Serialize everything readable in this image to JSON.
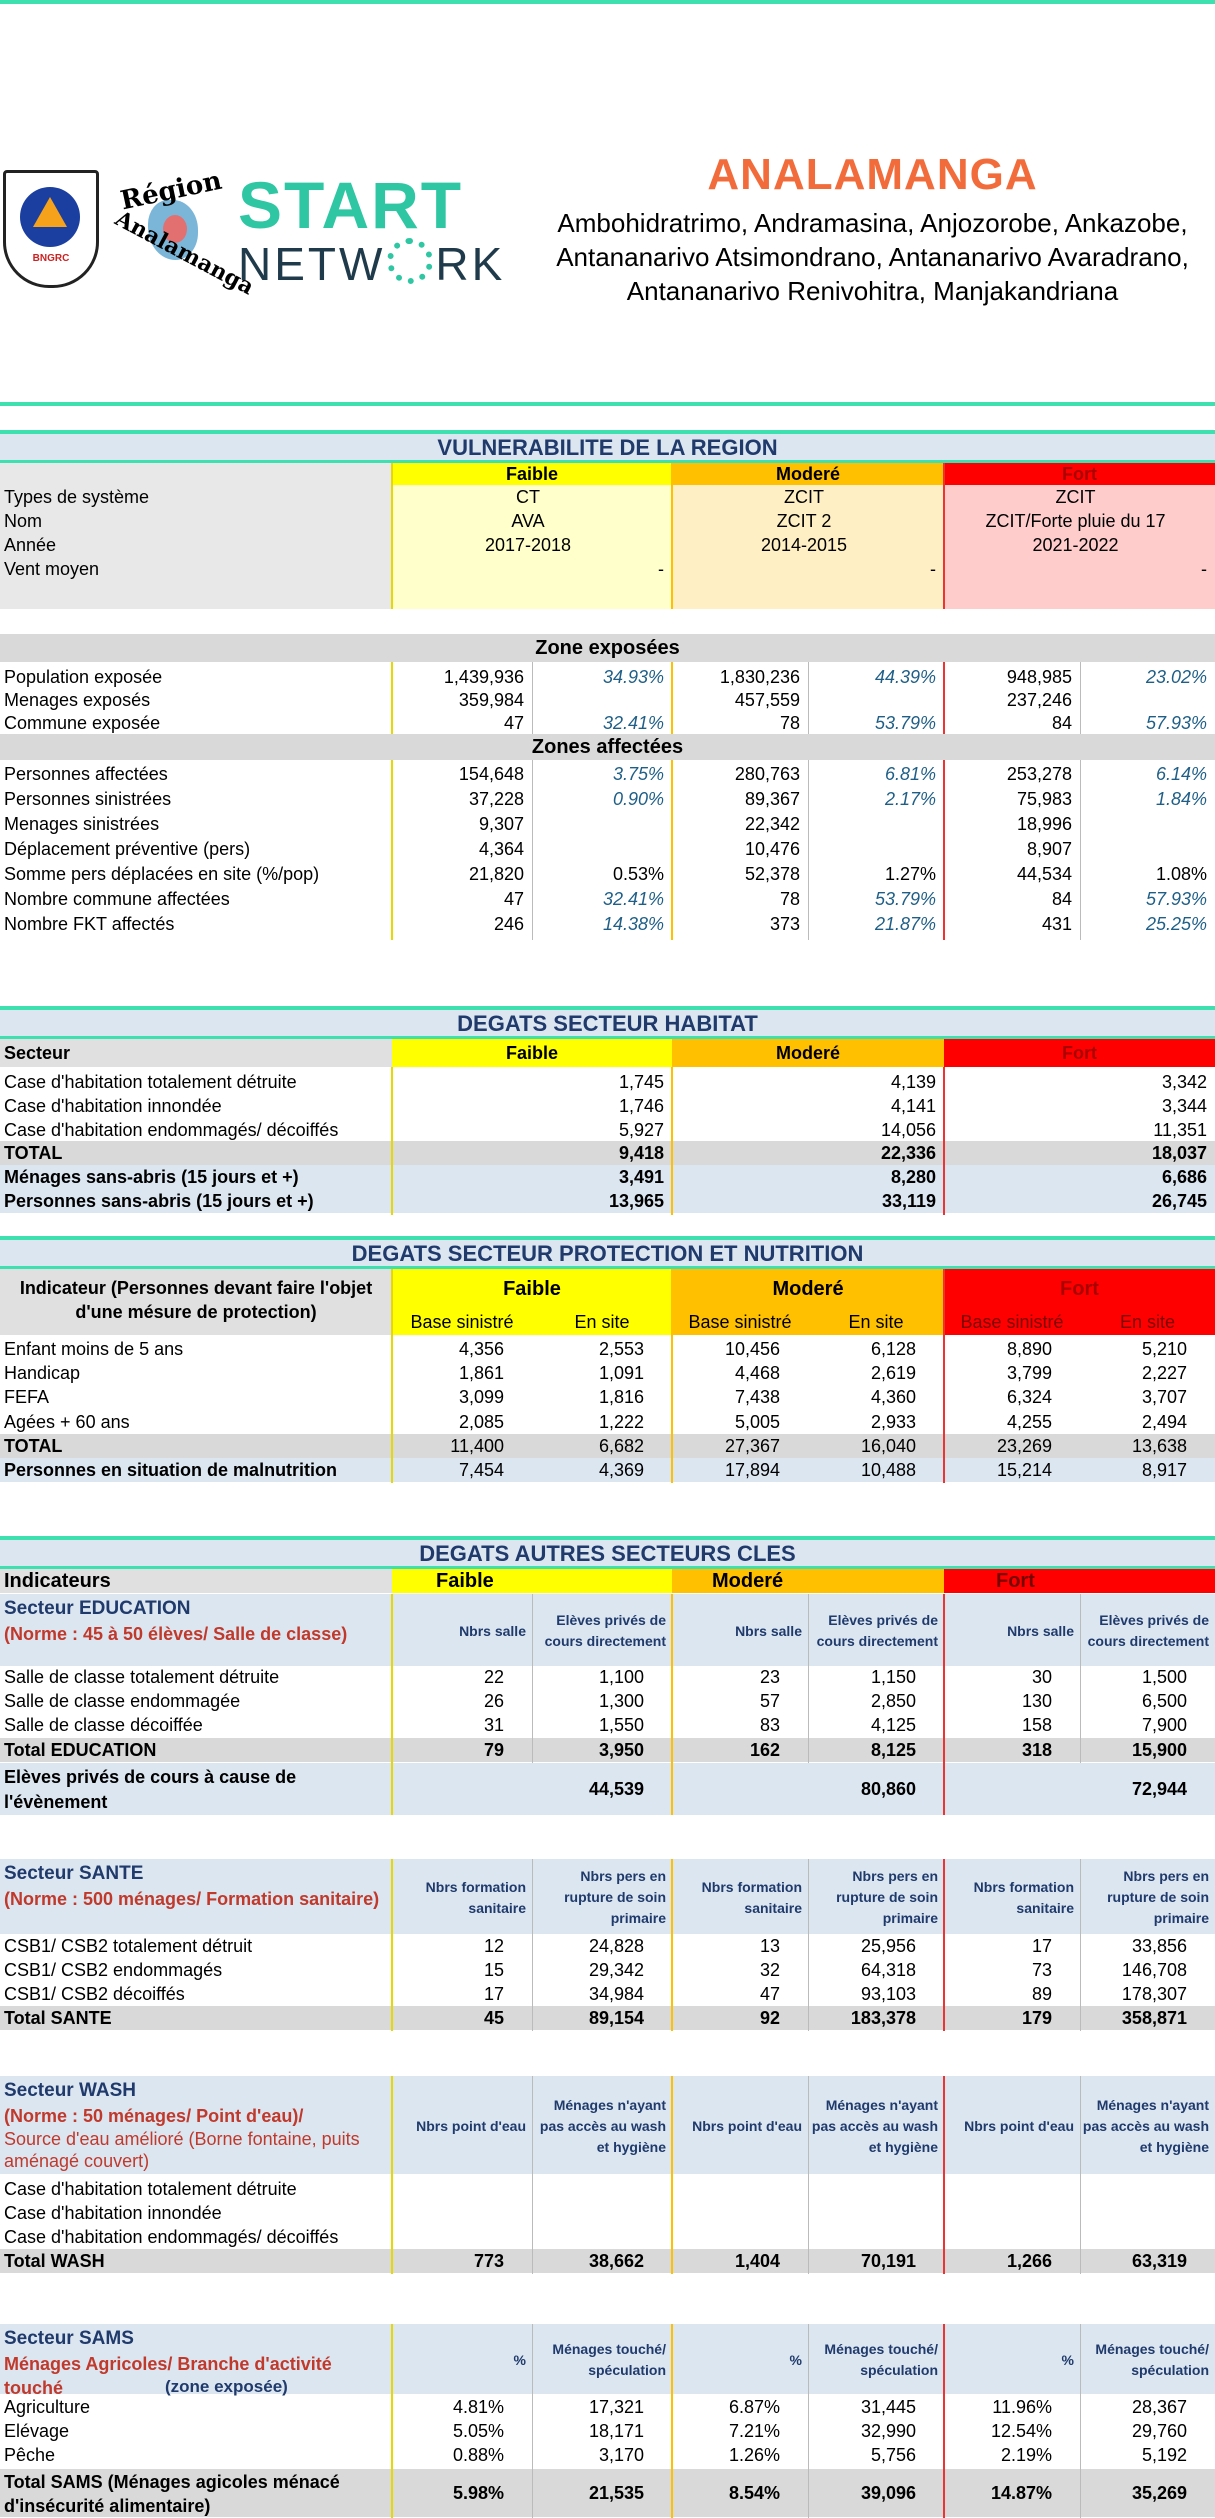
{
  "header": {
    "title": "ANALAMANGA",
    "subtitle_lines": [
      "Ambohidratrimo, Andramasina, Anjozorobe, Ankazobe,",
      "Antananarivo Atsimondrano, Antananarivo Avaradrano,",
      "Antananarivo Renivohitra, Manjakandriana"
    ],
    "logos": {
      "bngrc": "BNGRC",
      "region_line1": "Région",
      "region_line2": "Analamanga",
      "start_line1": "START",
      "start_line2": "NETW",
      "start_line3": "RK"
    }
  },
  "colors": {
    "faible": "#ffff00",
    "modere": "#ffc000",
    "fort": "#ff0000",
    "teal": "#3fe0b0",
    "section_bg": "#dce6f1",
    "grey": "#d9d9d9"
  },
  "vulnerabilite": {
    "title": "VULNERABILITE DE LA REGION",
    "levels": [
      "Faible",
      "Moderé",
      "Fort"
    ],
    "rows": [
      {
        "label": "Types de système",
        "values": [
          "CT",
          "ZCIT",
          "ZCIT"
        ]
      },
      {
        "label": "Nom",
        "values": [
          "AVA",
          "ZCIT 2",
          "ZCIT/Forte pluie du 17"
        ]
      },
      {
        "label": "Année",
        "values": [
          "2017-2018",
          "2014-2015",
          "2021-2022"
        ]
      },
      {
        "label": "Vent moyen",
        "values": [
          "-",
          "-",
          "-"
        ]
      }
    ]
  },
  "zones": {
    "exposed_title": "Zone exposées",
    "exposed": [
      {
        "label": "Population exposée",
        "v": [
          "1,439,936",
          "34.93%",
          "1,830,236",
          "44.39%",
          "948,985",
          "23.02%"
        ]
      },
      {
        "label": "Menages exposés",
        "v": [
          "359,984",
          "",
          "457,559",
          "",
          "237,246",
          ""
        ]
      },
      {
        "label": "Commune exposée",
        "v": [
          "47",
          "32.41%",
          "78",
          "53.79%",
          "84",
          "57.93%"
        ]
      }
    ],
    "affected_title": "Zones affectées",
    "affected": [
      {
        "label": "Personnes affectées",
        "v": [
          "154,648",
          "3.75%",
          "280,763",
          "6.81%",
          "253,278",
          "6.14%"
        ]
      },
      {
        "label": "Personnes sinistrées",
        "v": [
          "37,228",
          "0.90%",
          "89,367",
          "2.17%",
          "75,983",
          "1.84%"
        ]
      },
      {
        "label": "Menages sinistrées",
        "v": [
          "9,307",
          "",
          "22,342",
          "",
          "18,996",
          ""
        ]
      },
      {
        "label": "Déplacement préventive (pers)",
        "v": [
          "4,364",
          "",
          "10,476",
          "",
          "8,907",
          ""
        ]
      },
      {
        "label": "Somme pers déplacées en site (%/pop)",
        "v": [
          "21,820",
          "0.53%",
          "52,378",
          "1.27%",
          "44,534",
          "1.08%"
        ]
      },
      {
        "label": "Nombre commune affectées",
        "v": [
          "47",
          "32.41%",
          "78",
          "53.79%",
          "84",
          "57.93%"
        ]
      },
      {
        "label": "Nombre FKT affectés",
        "v": [
          "246",
          "14.38%",
          "373",
          "21.87%",
          "431",
          "25.25%"
        ]
      }
    ]
  },
  "habitat": {
    "title": "DEGATS SECTEUR HABITAT",
    "col_label": "Secteur",
    "rows": [
      {
        "label": "Case d'habitation totalement détruite",
        "v": [
          "1,745",
          "4,139",
          "3,342"
        ]
      },
      {
        "label": "Case d'habitation innondée",
        "v": [
          "1,746",
          "4,141",
          "3,344"
        ]
      },
      {
        "label": "Case d'habitation endommagés/ décoiffés",
        "v": [
          "5,927",
          "14,056",
          "11,351"
        ]
      },
      {
        "label": "TOTAL",
        "v": [
          "9,418",
          "22,336",
          "18,037"
        ]
      },
      {
        "label": "Ménages sans-abris (15 jours et +)",
        "v": [
          "3,491",
          "8,280",
          "6,686"
        ]
      },
      {
        "label": "Personnes sans-abris (15 jours et +)",
        "v": [
          "13,965",
          "33,119",
          "26,745"
        ]
      }
    ]
  },
  "protection": {
    "title": "DEGATS SECTEUR PROTECTION ET NUTRITION",
    "col_label": "Indicateur (Personnes devant faire l'objet d'une mésure de protection)",
    "sub": [
      "Base sinistré",
      "En site"
    ],
    "rows": [
      {
        "label": "Enfant moins de 5 ans",
        "v": [
          "4,356",
          "2,553",
          "10,456",
          "6,128",
          "8,890",
          "5,210"
        ]
      },
      {
        "label": "Handicap",
        "v": [
          "1,861",
          "1,091",
          "4,468",
          "2,619",
          "3,799",
          "2,227"
        ]
      },
      {
        "label": "FEFA",
        "v": [
          "3,099",
          "1,816",
          "7,438",
          "4,360",
          "6,324",
          "3,707"
        ]
      },
      {
        "label": "Agées + 60 ans",
        "v": [
          "2,085",
          "1,222",
          "5,005",
          "2,933",
          "4,255",
          "2,494"
        ]
      },
      {
        "label": "TOTAL",
        "v": [
          "11,400",
          "6,682",
          "27,367",
          "16,040",
          "23,269",
          "13,638"
        ]
      },
      {
        "label": "Personnes en situation de malnutrition",
        "v": [
          "7,454",
          "4,369",
          "17,894",
          "10,488",
          "15,214",
          "8,917"
        ]
      }
    ]
  },
  "autres": {
    "title": "DEGATS AUTRES SECTEURS CLES",
    "col_label": "Indicateurs",
    "education": {
      "name": "Secteur EDUCATION",
      "norm": "(Norme : 45 à 50 élèves/ Salle de classe)",
      "h1": "Nbrs salle",
      "h2": "Elèves privés de cours directement",
      "rows": [
        {
          "label": "Salle de classe totalement détruite",
          "v": [
            "22",
            "1,100",
            "23",
            "1,150",
            "30",
            "1,500"
          ]
        },
        {
          "label": "Salle de classe endommagée",
          "v": [
            "26",
            "1,300",
            "57",
            "2,850",
            "130",
            "6,500"
          ]
        },
        {
          "label": "Salle de classe décoiffée",
          "v": [
            "31",
            "1,550",
            "83",
            "4,125",
            "158",
            "7,900"
          ]
        },
        {
          "label": "Total EDUCATION",
          "v": [
            "79",
            "3,950",
            "162",
            "8,125",
            "318",
            "15,900"
          ]
        }
      ],
      "prive_label": "Elèves privés de cours à cause de l'évènement",
      "prive": [
        "44,539",
        "80,860",
        "72,944"
      ]
    },
    "sante": {
      "name": "Secteur SANTE",
      "norm": "(Norme : 500 ménages/ Formation sanitaire)",
      "h1": "Nbrs formation sanitaire",
      "h2": "Nbrs pers en rupture de soin primaire",
      "rows": [
        {
          "label": "CSB1/ CSB2 totalement détruit",
          "v": [
            "12",
            "24,828",
            "13",
            "25,956",
            "17",
            "33,856"
          ]
        },
        {
          "label": "CSB1/ CSB2 endommagés",
          "v": [
            "15",
            "29,342",
            "32",
            "64,318",
            "73",
            "146,708"
          ]
        },
        {
          "label": "CSB1/ CSB2 décoiffés",
          "v": [
            "17",
            "34,984",
            "47",
            "93,103",
            "89",
            "178,307"
          ]
        },
        {
          "label": "Total SANTE",
          "v": [
            "45",
            "89,154",
            "92",
            "183,378",
            "179",
            "358,871"
          ]
        }
      ]
    },
    "wash": {
      "name": "Secteur WASH",
      "norm": "(Norme : 50 ménages/ Point d'eau)/",
      "norm2": "Source d'eau amélioré (Borne fontaine, puits aménagé couvert)",
      "h1": "Nbrs point d'eau",
      "h2": "Ménages n'ayant pas accès au wash et hygiène",
      "rows": [
        {
          "label": "Case d'habitation totalement détruite",
          "v": [
            "",
            "",
            "",
            "",
            "",
            ""
          ]
        },
        {
          "label": "Case d'habitation innondée",
          "v": [
            "",
            "",
            "",
            "",
            "",
            ""
          ]
        },
        {
          "label": "Case d'habitation endommagés/ décoiffés",
          "v": [
            "",
            "",
            "",
            "",
            "",
            ""
          ]
        },
        {
          "label": "Total WASH",
          "v": [
            "773",
            "38,662",
            "1,404",
            "70,191",
            "1,266",
            "63,319"
          ]
        }
      ]
    },
    "sams": {
      "name": "Secteur SAMS",
      "norm": "Ménages Agricoles/ Branche d'activité touché",
      "norm3": "(zone exposée)",
      "h1": "%",
      "h2": "Ménages touché/ spéculation",
      "rows": [
        {
          "label": "Agriculture",
          "v": [
            "4.81%",
            "17,321",
            "6.87%",
            "31,445",
            "11.96%",
            "28,367"
          ]
        },
        {
          "label": "Elévage",
          "v": [
            "5.05%",
            "18,171",
            "7.21%",
            "32,990",
            "12.54%",
            "29,760"
          ]
        },
        {
          "label": "Pêche",
          "v": [
            "0.88%",
            "3,170",
            "1.26%",
            "5,756",
            "2.19%",
            "5,192"
          ]
        },
        {
          "label": "Total SAMS (Ménages agicoles ménacé d'insécurité alimentaire)",
          "v": [
            "5.98%",
            "21,535",
            "8.54%",
            "39,096",
            "14.87%",
            "35,269"
          ]
        }
      ]
    }
  }
}
